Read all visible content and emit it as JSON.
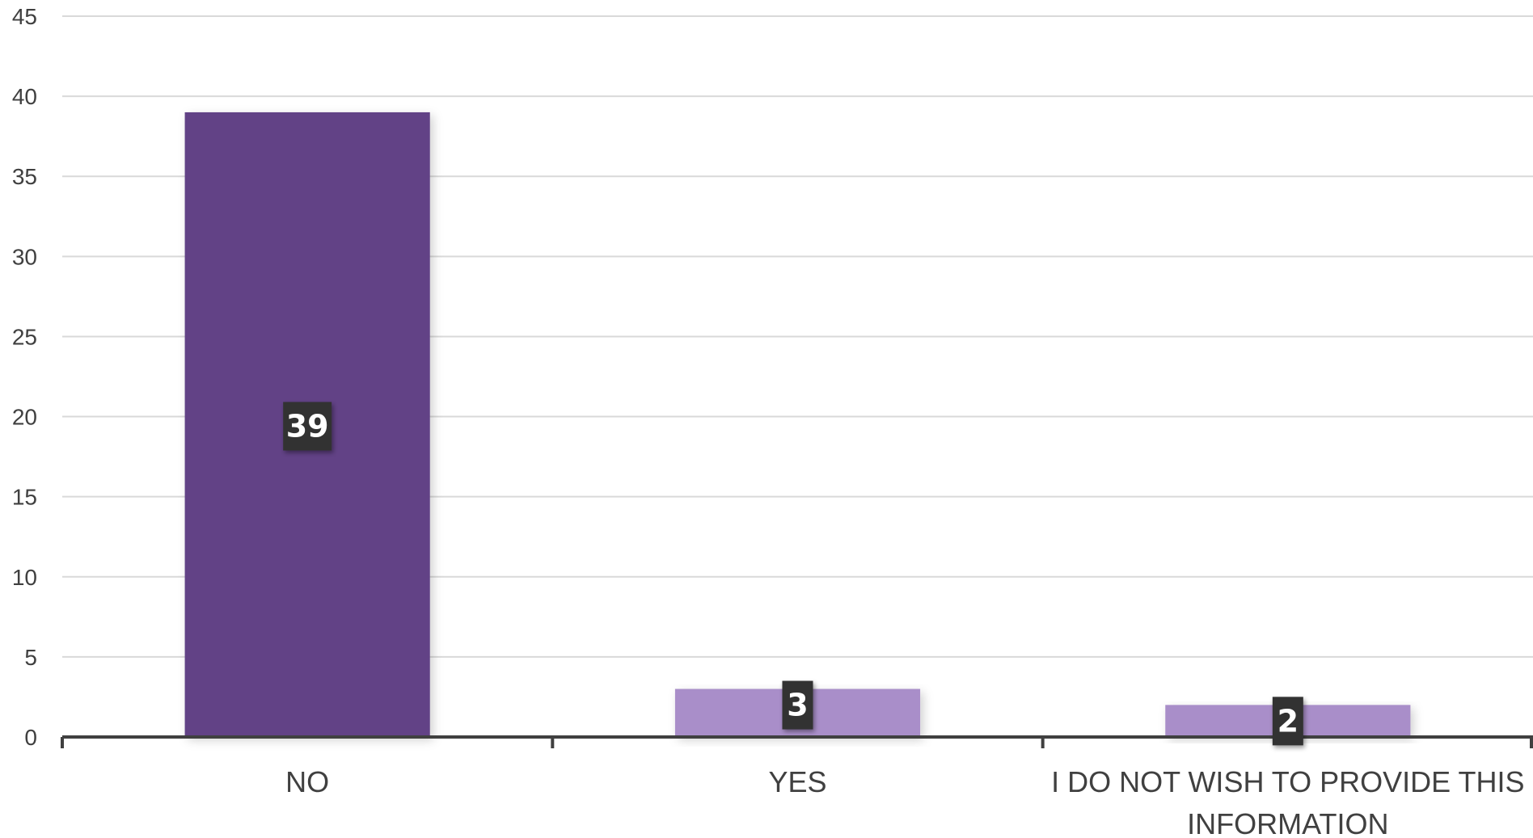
{
  "chart_data": {
    "type": "bar",
    "categories": [
      "NO",
      "YES",
      "I DO NOT WISH TO PROVIDE THIS INFORMATION"
    ],
    "category_lines": [
      [
        "NO"
      ],
      [
        "YES"
      ],
      [
        "I DO NOT WISH TO PROVIDE THIS",
        "INFORMATION"
      ]
    ],
    "values": [
      39,
      3,
      2
    ],
    "data_labels": [
      "39",
      "3",
      "2"
    ],
    "ylim": [
      0,
      45
    ],
    "yticks": [
      "0",
      "5",
      "10",
      "15",
      "20",
      "25",
      "30",
      "35",
      "40",
      "45"
    ],
    "grid": true,
    "title": "",
    "xlabel": "",
    "ylabel": "",
    "colors": {
      "highlight_bar": "#624386",
      "bar": "#a98ec9",
      "label_box": "#333333",
      "grid": "#d9d9d9",
      "axis": "#404040"
    }
  }
}
